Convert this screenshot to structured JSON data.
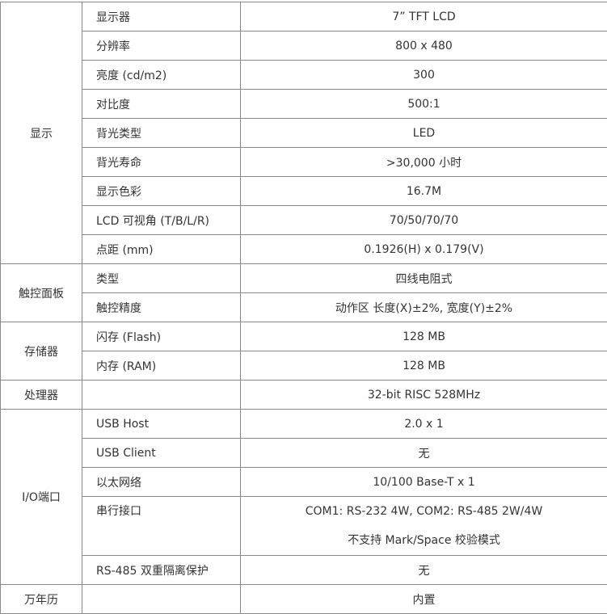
{
  "groups": [
    {
      "category": "显示",
      "rows": [
        {
          "name": "显示器",
          "value": "7” TFT LCD"
        },
        {
          "name": "分辨率",
          "value": "800 x 480"
        },
        {
          "name": "亮度 (cd/m2)",
          "value": "300"
        },
        {
          "name": "对比度",
          "value": "500:1"
        },
        {
          "name": "背光类型",
          "value": "LED"
        },
        {
          "name": "背光寿命",
          "value": ">30,000 小时"
        },
        {
          "name": "显示色彩",
          "value": "16.7M"
        },
        {
          "name": "LCD 可视角 (T/B/L/R)",
          "value": "70/50/70/70"
        },
        {
          "name": "点距 (mm)",
          "value": "0.1926(H) x 0.179(V)"
        }
      ]
    },
    {
      "category": "触控面板",
      "rows": [
        {
          "name": "类型",
          "value": "四线电阻式"
        },
        {
          "name": "触控精度",
          "value": "动作区 长度(X)±2%, 宽度(Y)±2%"
        }
      ]
    },
    {
      "category": "存储器",
      "rows": [
        {
          "name": "闪存 (Flash)",
          "value": "128 MB"
        },
        {
          "name": "内存 (RAM)",
          "value": "128 MB"
        }
      ]
    },
    {
      "category": "处理器",
      "rows": [
        {
          "name": "",
          "value": "32-bit RISC 528MHz"
        }
      ]
    },
    {
      "category": "I/O端口",
      "rows": [
        {
          "name": "USB Host",
          "value": "2.0 x 1"
        },
        {
          "name": "USB Client",
          "value": "无"
        },
        {
          "name": "以太网络",
          "value": "10/100 Base-T x 1"
        },
        {
          "name": "串行接口",
          "value": "COM1: RS-232 4W, COM2: RS-485 2W/4W",
          "value2": "不支持 Mark/Space 校验模式"
        },
        {
          "name": "RS-485 双重隔离保护",
          "value": "无"
        }
      ]
    },
    {
      "category": "万年历",
      "rows": [
        {
          "name": "",
          "value": "内置"
        }
      ]
    }
  ]
}
